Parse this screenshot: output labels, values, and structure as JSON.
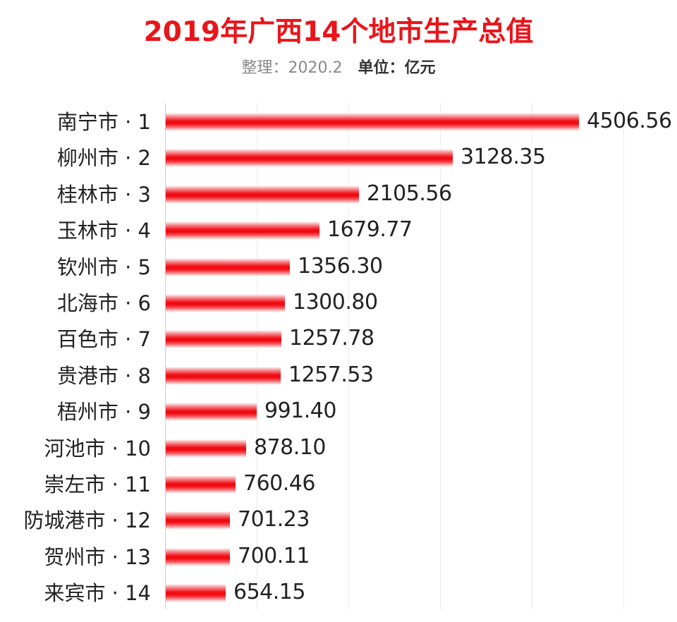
{
  "header": {
    "title": "2019年广西14个地市生产总值",
    "compiled_label": "整理：2020.2",
    "unit_label": "单位：亿元"
  },
  "colors": {
    "title": "#e8151b",
    "bar": "#f20d14",
    "text": "#222222",
    "grid": "#ececec"
  },
  "chart_data": {
    "type": "bar",
    "orientation": "horizontal",
    "title": "2019年广西14个地市生产总值",
    "subtitle": "整理：2020.2  单位：亿元",
    "xlabel": "",
    "ylabel": "",
    "unit": "亿元",
    "xlim": [
      0,
      5000
    ],
    "grid": true,
    "gridline_values": [
      0,
      1000,
      2000,
      3000,
      4000,
      5000
    ],
    "tick_labels_visible": false,
    "legend": null,
    "categories": [
      "南宁市 · 1",
      "柳州市 · 2",
      "桂林市 · 3",
      "玉林市 · 4",
      "钦州市 · 5",
      "北海市 · 6",
      "百色市 · 7",
      "贵港市 · 8",
      "梧州市 · 9",
      "河池市 · 10",
      "崇左市 · 11",
      "防城港市 · 12",
      "贺州市 · 13",
      "来宾市 · 14"
    ],
    "values": [
      4506.56,
      3128.35,
      2105.56,
      1679.77,
      1356.3,
      1300.8,
      1257.78,
      1257.53,
      991.4,
      878.1,
      760.46,
      701.23,
      700.11,
      654.15
    ],
    "value_labels": [
      "4506.56",
      "3128.35",
      "2105.56",
      "1679.77",
      "1356.30",
      "1300.80",
      "1257.78",
      "1257.53",
      "991.40",
      "878.10",
      "760.46",
      "701.23",
      "700.11",
      "654.15"
    ]
  }
}
